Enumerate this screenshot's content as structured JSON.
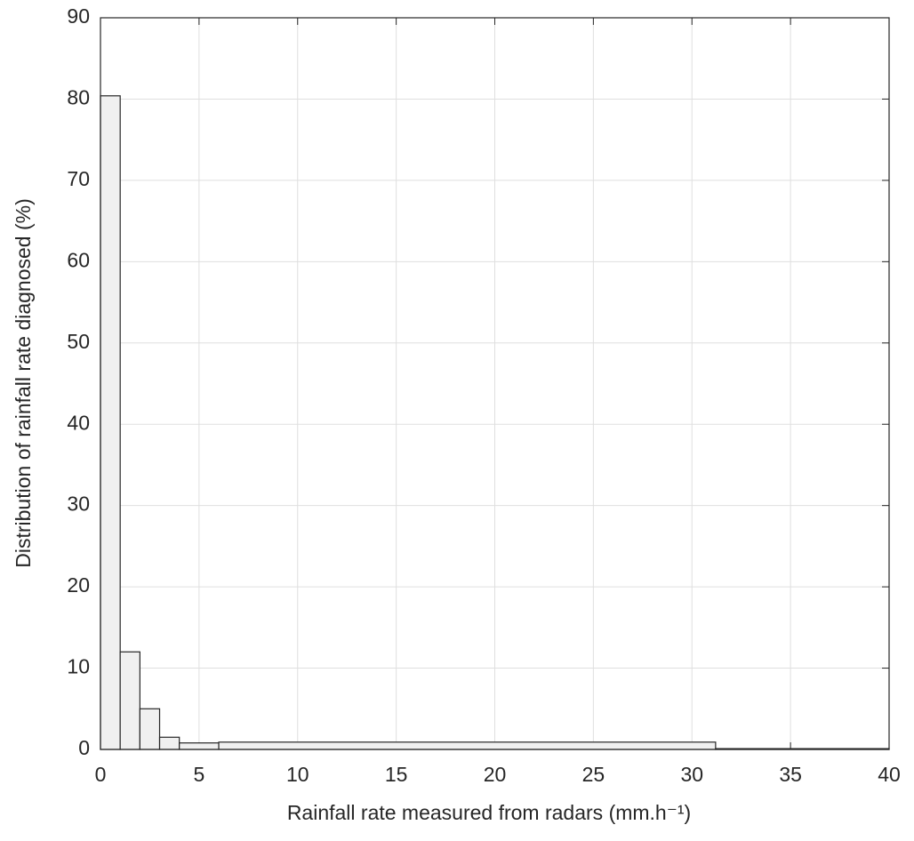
{
  "chart_data": {
    "type": "histogram",
    "x_label": "Rainfall rate measured from radars  (mm.h⁻¹)",
    "y_label": "Distribution of rainfall rate diagnosed (%)",
    "bins": [
      0,
      1,
      2,
      3,
      4,
      6,
      31.2,
      40
    ],
    "values": [
      80.4,
      12.0,
      5.0,
      1.5,
      0.8,
      0.9,
      0.1
    ],
    "color": "#f0f0f0",
    "xlim": [
      0,
      40
    ],
    "xticks": [
      0,
      5,
      10,
      15,
      20,
      25,
      30,
      35,
      40
    ],
    "ylim": [
      0,
      90
    ],
    "yticks": [
      0,
      10,
      20,
      30,
      40,
      50,
      60,
      70,
      80,
      90
    ],
    "grid": true
  }
}
